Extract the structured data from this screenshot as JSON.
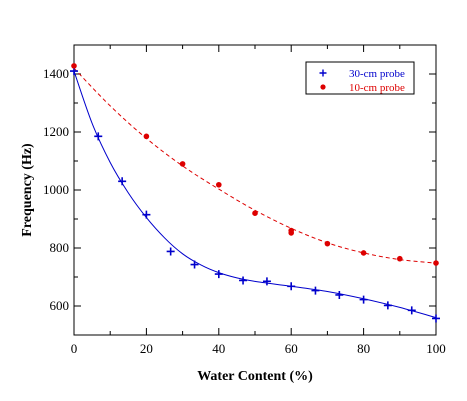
{
  "chart_data": {
    "type": "scatter",
    "title": "",
    "xlabel": "Water Content (%)",
    "ylabel": "Frequency (Hz)",
    "xlim": [
      0,
      100
    ],
    "ylim": [
      500,
      1500
    ],
    "x_ticks": [
      "0",
      "20",
      "40",
      "60",
      "80",
      "100"
    ],
    "y_ticks": [
      "600",
      "800",
      "1000",
      "1200",
      "1400"
    ],
    "grid": false,
    "legend_position": "top-right",
    "series": [
      {
        "name": "30-cm probe",
        "marker": "plus",
        "color": "#0000cc",
        "line_style": "solid",
        "points": [
          {
            "x": 0,
            "y": 1410
          },
          {
            "x": 6.7,
            "y": 1185
          },
          {
            "x": 13.3,
            "y": 1030
          },
          {
            "x": 20,
            "y": 915
          },
          {
            "x": 26.7,
            "y": 788
          },
          {
            "x": 33.3,
            "y": 743
          },
          {
            "x": 40,
            "y": 710
          },
          {
            "x": 46.7,
            "y": 688
          },
          {
            "x": 53.3,
            "y": 685
          },
          {
            "x": 60,
            "y": 668
          },
          {
            "x": 66.7,
            "y": 653
          },
          {
            "x": 73.3,
            "y": 638
          },
          {
            "x": 80,
            "y": 622
          },
          {
            "x": 86.7,
            "y": 602
          },
          {
            "x": 93.3,
            "y": 585
          },
          {
            "x": 100,
            "y": 557
          }
        ],
        "fit": [
          {
            "x": 0,
            "y": 1410
          },
          {
            "x": 5,
            "y": 1230
          },
          {
            "x": 10,
            "y": 1095
          },
          {
            "x": 15,
            "y": 990
          },
          {
            "x": 20,
            "y": 905
          },
          {
            "x": 25,
            "y": 835
          },
          {
            "x": 30,
            "y": 780
          },
          {
            "x": 35,
            "y": 742
          },
          {
            "x": 40,
            "y": 715
          },
          {
            "x": 45,
            "y": 697
          },
          {
            "x": 50,
            "y": 685
          },
          {
            "x": 60,
            "y": 668
          },
          {
            "x": 70,
            "y": 650
          },
          {
            "x": 80,
            "y": 625
          },
          {
            "x": 90,
            "y": 595
          },
          {
            "x": 100,
            "y": 560
          }
        ]
      },
      {
        "name": "10-cm probe",
        "marker": "circle",
        "color": "#dd0000",
        "line_style": "dashed",
        "points": [
          {
            "x": 0,
            "y": 1428
          },
          {
            "x": 20,
            "y": 1185
          },
          {
            "x": 30,
            "y": 1090
          },
          {
            "x": 40,
            "y": 1018
          },
          {
            "x": 50,
            "y": 920
          },
          {
            "x": 60,
            "y": 860
          },
          {
            "x": 60,
            "y": 852
          },
          {
            "x": 70,
            "y": 815
          },
          {
            "x": 80,
            "y": 783
          },
          {
            "x": 90,
            "y": 763
          },
          {
            "x": 100,
            "y": 748
          }
        ],
        "fit": [
          {
            "x": 0,
            "y": 1420
          },
          {
            "x": 10,
            "y": 1290
          },
          {
            "x": 20,
            "y": 1178
          },
          {
            "x": 30,
            "y": 1083
          },
          {
            "x": 40,
            "y": 1003
          },
          {
            "x": 50,
            "y": 930
          },
          {
            "x": 60,
            "y": 868
          },
          {
            "x": 70,
            "y": 818
          },
          {
            "x": 80,
            "y": 783
          },
          {
            "x": 90,
            "y": 760
          },
          {
            "x": 100,
            "y": 748
          }
        ]
      }
    ]
  }
}
